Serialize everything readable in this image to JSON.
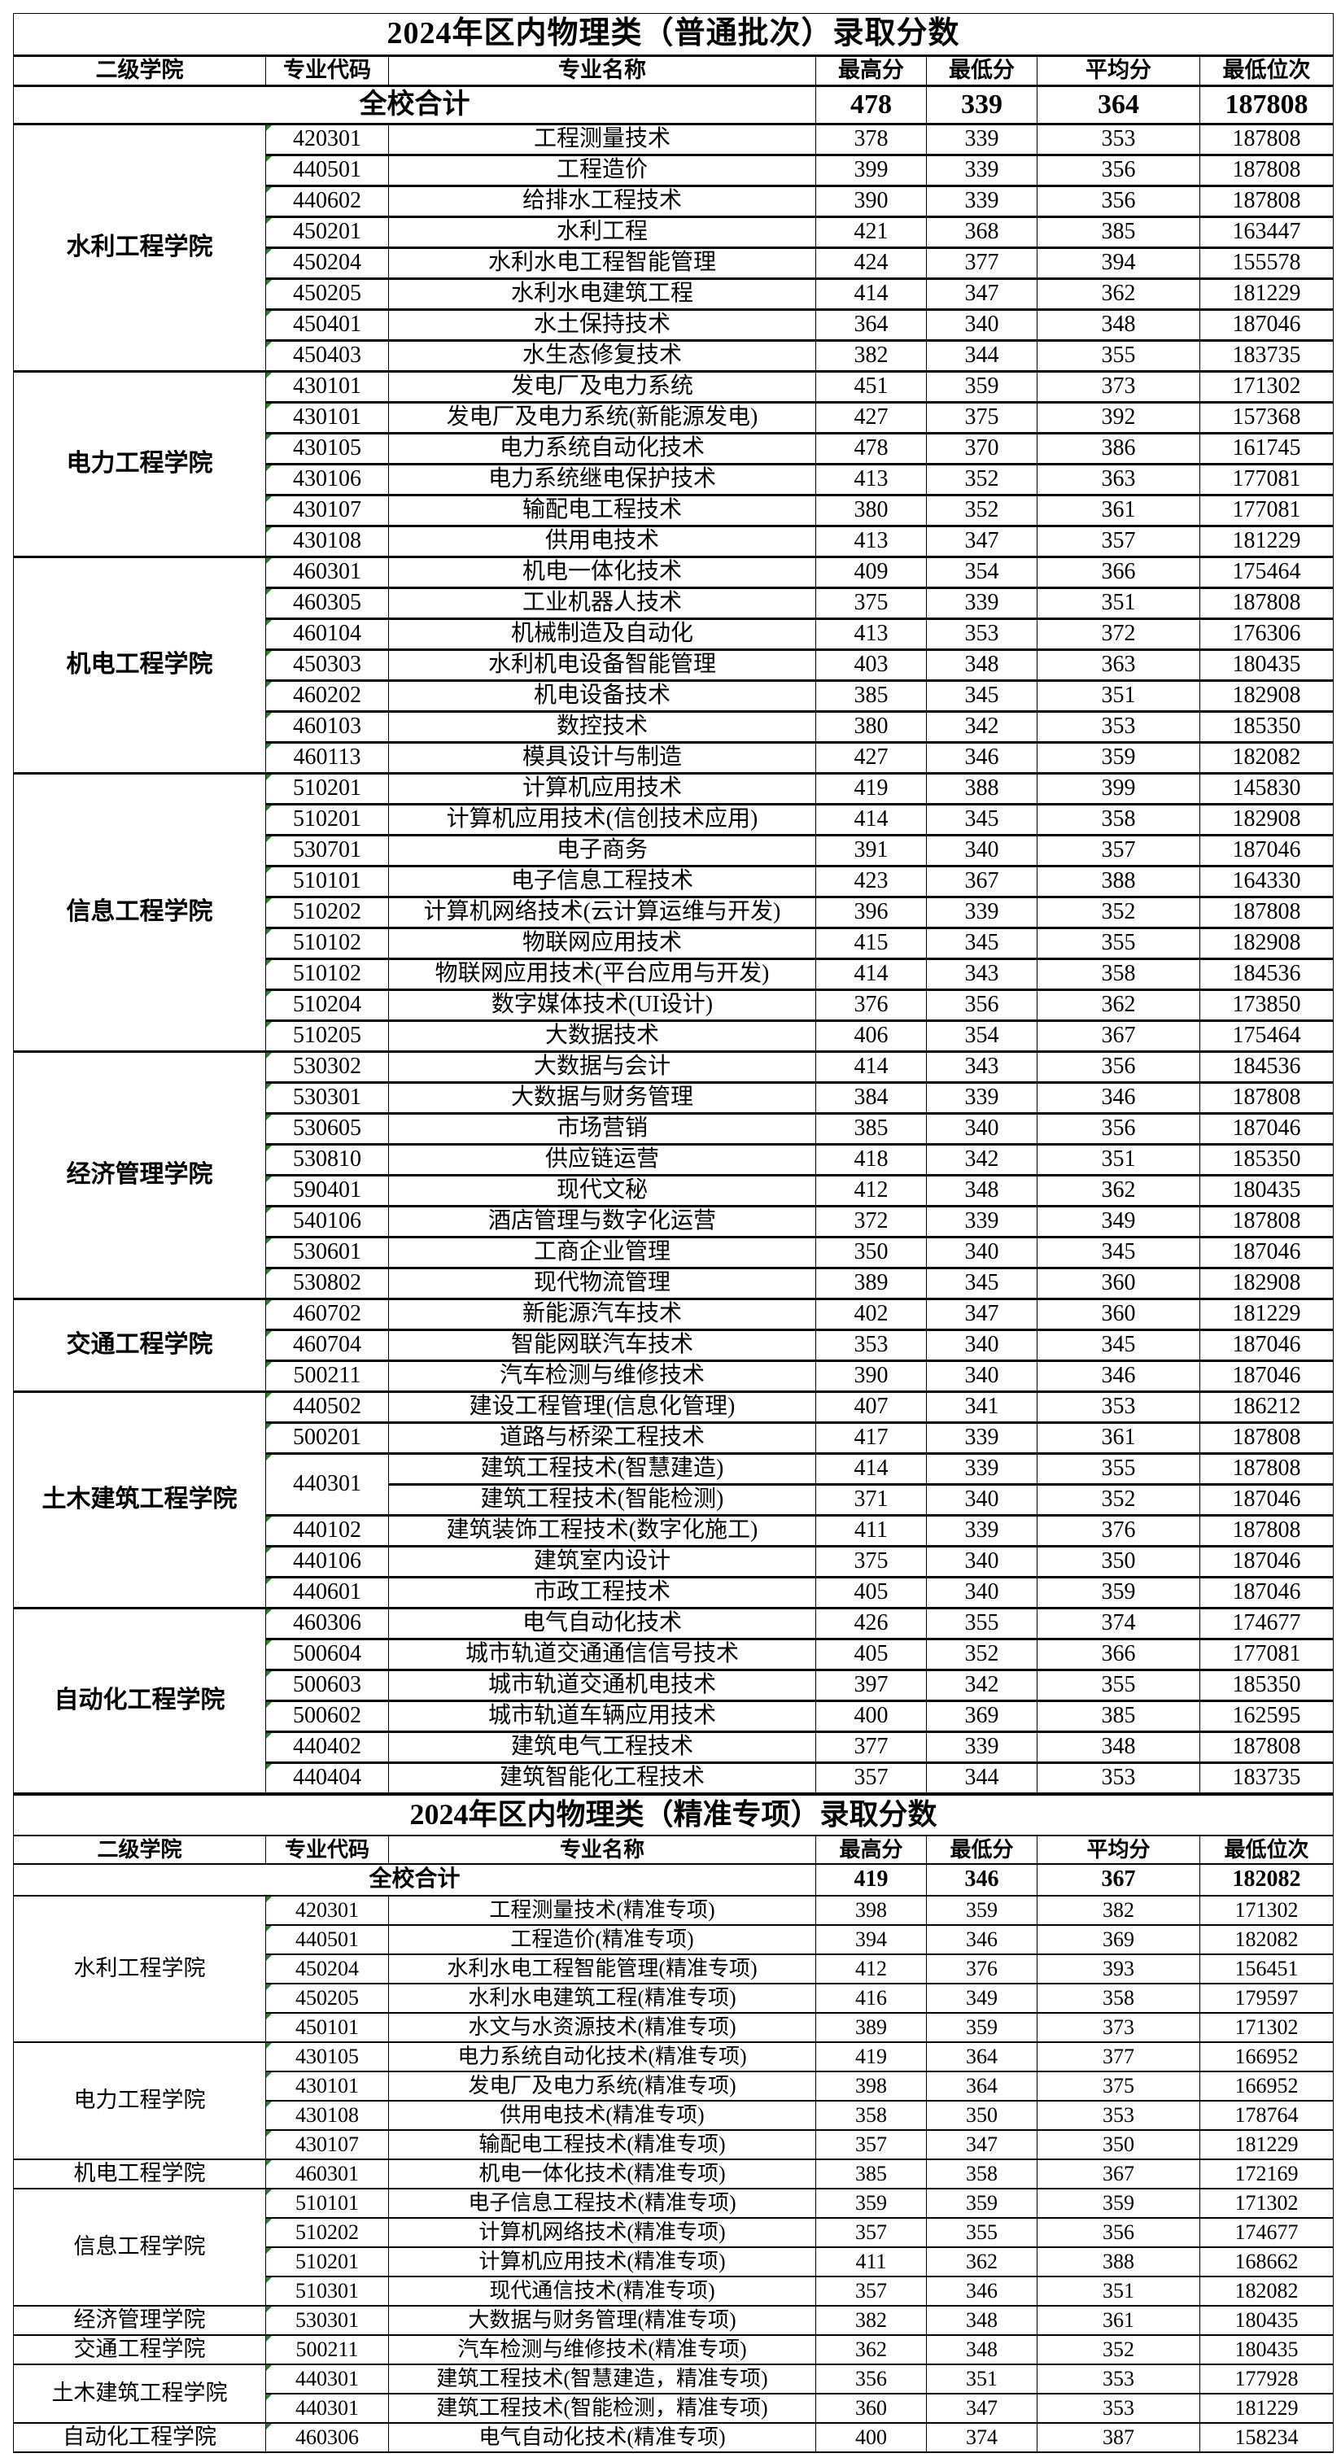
{
  "tables": [
    {
      "title": "2024年区内物理类（普通批次）录取分数",
      "headers": [
        "二级学院",
        "专业代码",
        "专业名称",
        "最高分",
        "最低分",
        "平均分",
        "最低位次"
      ],
      "total": {
        "label": "全校合计",
        "max": "478",
        "min": "339",
        "avg": "364",
        "rank": "187808"
      },
      "groups": [
        {
          "college": "水利工程学院",
          "rows": [
            [
              "420301",
              "工程测量技术",
              "378",
              "339",
              "353",
              "187808"
            ],
            [
              "440501",
              "工程造价",
              "399",
              "339",
              "356",
              "187808"
            ],
            [
              "440602",
              "给排水工程技术",
              "390",
              "339",
              "356",
              "187808"
            ],
            [
              "450201",
              "水利工程",
              "421",
              "368",
              "385",
              "163447"
            ],
            [
              "450204",
              "水利水电工程智能管理",
              "424",
              "377",
              "394",
              "155578"
            ],
            [
              "450205",
              "水利水电建筑工程",
              "414",
              "347",
              "362",
              "181229"
            ],
            [
              "450401",
              "水土保持技术",
              "364",
              "340",
              "348",
              "187046"
            ],
            [
              "450403",
              "水生态修复技术",
              "382",
              "344",
              "355",
              "183735"
            ]
          ]
        },
        {
          "college": "电力工程学院",
          "rows": [
            [
              "430101",
              "发电厂及电力系统",
              "451",
              "359",
              "373",
              "171302"
            ],
            [
              "430101",
              "发电厂及电力系统(新能源发电)",
              "427",
              "375",
              "392",
              "157368"
            ],
            [
              "430105",
              "电力系统自动化技术",
              "478",
              "370",
              "386",
              "161745"
            ],
            [
              "430106",
              "电力系统继电保护技术",
              "413",
              "352",
              "363",
              "177081"
            ],
            [
              "430107",
              "输配电工程技术",
              "380",
              "352",
              "361",
              "177081"
            ],
            [
              "430108",
              "供用电技术",
              "413",
              "347",
              "357",
              "181229"
            ]
          ]
        },
        {
          "college": "机电工程学院",
          "rows": [
            [
              "460301",
              "机电一体化技术",
              "409",
              "354",
              "366",
              "175464"
            ],
            [
              "460305",
              "工业机器人技术",
              "375",
              "339",
              "351",
              "187808"
            ],
            [
              "460104",
              "机械制造及自动化",
              "413",
              "353",
              "372",
              "176306"
            ],
            [
              "450303",
              "水利机电设备智能管理",
              "403",
              "348",
              "363",
              "180435"
            ],
            [
              "460202",
              "机电设备技术",
              "385",
              "345",
              "351",
              "182908"
            ],
            [
              "460103",
              "数控技术",
              "380",
              "342",
              "353",
              "185350"
            ],
            [
              "460113",
              "模具设计与制造",
              "427",
              "346",
              "359",
              "182082"
            ]
          ]
        },
        {
          "college": "信息工程学院",
          "rows": [
            [
              "510201",
              "计算机应用技术",
              "419",
              "388",
              "399",
              "145830"
            ],
            [
              "510201",
              "计算机应用技术(信创技术应用)",
              "414",
              "345",
              "358",
              "182908"
            ],
            [
              "530701",
              "电子商务",
              "391",
              "340",
              "357",
              "187046"
            ],
            [
              "510101",
              "电子信息工程技术",
              "423",
              "367",
              "388",
              "164330"
            ],
            [
              "510202",
              "计算机网络技术(云计算运维与开发)",
              "396",
              "339",
              "352",
              "187808"
            ],
            [
              "510102",
              "物联网应用技术",
              "415",
              "345",
              "355",
              "182908"
            ],
            [
              "510102",
              "物联网应用技术(平台应用与开发)",
              "414",
              "343",
              "358",
              "184536"
            ],
            [
              "510204",
              "数字媒体技术(UI设计)",
              "376",
              "356",
              "362",
              "173850"
            ],
            [
              "510205",
              "大数据技术",
              "406",
              "354",
              "367",
              "175464"
            ]
          ]
        },
        {
          "college": "经济管理学院",
          "rows": [
            [
              "530302",
              "大数据与会计",
              "414",
              "343",
              "356",
              "184536"
            ],
            [
              "530301",
              "大数据与财务管理",
              "384",
              "339",
              "346",
              "187808"
            ],
            [
              "530605",
              "市场营销",
              "385",
              "340",
              "356",
              "187046"
            ],
            [
              "530810",
              "供应链运营",
              "418",
              "342",
              "351",
              "185350"
            ],
            [
              "590401",
              "现代文秘",
              "412",
              "348",
              "362",
              "180435"
            ],
            [
              "540106",
              "酒店管理与数字化运营",
              "372",
              "339",
              "349",
              "187808"
            ],
            [
              "530601",
              "工商企业管理",
              "350",
              "340",
              "345",
              "187046"
            ],
            [
              "530802",
              "现代物流管理",
              "389",
              "345",
              "360",
              "182908"
            ]
          ]
        },
        {
          "college": "交通工程学院",
          "rows": [
            [
              "460702",
              "新能源汽车技术",
              "402",
              "347",
              "360",
              "181229"
            ],
            [
              "460704",
              "智能网联汽车技术",
              "353",
              "340",
              "345",
              "187046"
            ],
            [
              "500211",
              "汽车检测与维修技术",
              "390",
              "340",
              "346",
              "187046"
            ]
          ]
        },
        {
          "college": "土木建筑工程学院",
          "rows": [
            [
              "440502",
              "建设工程管理(信息化管理)",
              "407",
              "341",
              "353",
              "186212"
            ],
            [
              "500201",
              "道路与桥梁工程技术",
              "417",
              "339",
              "361",
              "187808"
            ],
            [
              "440301",
              "建筑工程技术(智慧建造)",
              "414",
              "339",
              "355",
              "187808"
            ],
            [
              "",
              "建筑工程技术(智能检测)",
              "371",
              "340",
              "352",
              "187046"
            ],
            [
              "440102",
              "建筑装饰工程技术(数字化施工)",
              "411",
              "339",
              "376",
              "187808"
            ],
            [
              "440106",
              "建筑室内设计",
              "375",
              "340",
              "350",
              "187046"
            ],
            [
              "440601",
              "市政工程技术",
              "405",
              "340",
              "359",
              "187046"
            ]
          ]
        },
        {
          "college": "自动化工程学院",
          "rows": [
            [
              "460306",
              "电气自动化技术",
              "426",
              "355",
              "374",
              "174677"
            ],
            [
              "500604",
              "城市轨道交通通信信号技术",
              "405",
              "352",
              "366",
              "177081"
            ],
            [
              "500603",
              "城市轨道交通机电技术",
              "397",
              "342",
              "355",
              "185350"
            ],
            [
              "500602",
              "城市轨道车辆应用技术",
              "400",
              "369",
              "385",
              "162595"
            ],
            [
              "440402",
              "建筑电气工程技术",
              "377",
              "339",
              "348",
              "187808"
            ],
            [
              "440404",
              "建筑智能化工程技术",
              "357",
              "344",
              "353",
              "183735"
            ]
          ]
        }
      ]
    },
    {
      "title": "2024年区内物理类（精准专项）录取分数",
      "headers": [
        "二级学院",
        "专业代码",
        "专业名称",
        "最高分",
        "最低分",
        "平均分",
        "最低位次"
      ],
      "total": {
        "label": "全校合计",
        "max": "419",
        "min": "346",
        "avg": "367",
        "rank": "182082"
      },
      "groups": [
        {
          "college": "水利工程学院",
          "rows": [
            [
              "420301",
              "工程测量技术(精准专项)",
              "398",
              "359",
              "382",
              "171302"
            ],
            [
              "440501",
              "工程造价(精准专项)",
              "394",
              "346",
              "369",
              "182082"
            ],
            [
              "450204",
              "水利水电工程智能管理(精准专项)",
              "412",
              "376",
              "393",
              "156451"
            ],
            [
              "450205",
              "水利水电建筑工程(精准专项)",
              "416",
              "349",
              "358",
              "179597"
            ],
            [
              "450101",
              "水文与水资源技术(精准专项)",
              "389",
              "359",
              "373",
              "171302"
            ]
          ]
        },
        {
          "college": "电力工程学院",
          "rows": [
            [
              "430105",
              "电力系统自动化技术(精准专项)",
              "419",
              "364",
              "377",
              "166952"
            ],
            [
              "430101",
              "发电厂及电力系统(精准专项)",
              "398",
              "364",
              "375",
              "166952"
            ],
            [
              "430108",
              "供用电技术(精准专项)",
              "358",
              "350",
              "353",
              "178764"
            ],
            [
              "430107",
              "输配电工程技术(精准专项)",
              "357",
              "347",
              "350",
              "181229"
            ]
          ]
        },
        {
          "college": "机电工程学院",
          "rows": [
            [
              "460301",
              "机电一体化技术(精准专项)",
              "385",
              "358",
              "367",
              "172169"
            ]
          ]
        },
        {
          "college": "信息工程学院",
          "rows": [
            [
              "510101",
              "电子信息工程技术(精准专项)",
              "359",
              "359",
              "359",
              "171302"
            ],
            [
              "510202",
              "计算机网络技术(精准专项)",
              "357",
              "355",
              "356",
              "174677"
            ],
            [
              "510201",
              "计算机应用技术(精准专项)",
              "411",
              "362",
              "388",
              "168662"
            ],
            [
              "510301",
              "现代通信技术(精准专项)",
              "357",
              "346",
              "351",
              "182082"
            ]
          ]
        },
        {
          "college": "经济管理学院",
          "rows": [
            [
              "530301",
              "大数据与财务管理(精准专项)",
              "382",
              "348",
              "361",
              "180435"
            ]
          ]
        },
        {
          "college": "交通工程学院",
          "rows": [
            [
              "500211",
              "汽车检测与维修技术(精准专项)",
              "362",
              "348",
              "352",
              "180435"
            ]
          ]
        },
        {
          "college": "土木建筑工程学院",
          "rows": [
            [
              "440301",
              "建筑工程技术(智慧建造，精准专项)",
              "356",
              "351",
              "353",
              "177928"
            ],
            [
              "440301",
              "建筑工程技术(智能检测，精准专项)",
              "360",
              "347",
              "353",
              "181229"
            ]
          ]
        },
        {
          "college": "自动化工程学院",
          "rows": [
            [
              "460306",
              "电气自动化技术(精准专项)",
              "400",
              "374",
              "387",
              "158234"
            ]
          ]
        }
      ]
    }
  ]
}
